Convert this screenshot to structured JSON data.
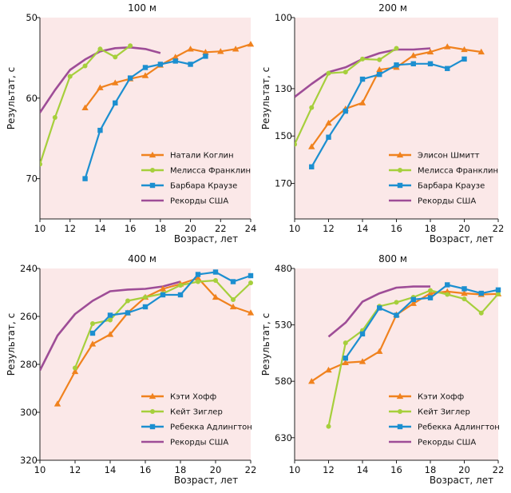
{
  "colors": {
    "orange": "#f0821e",
    "green": "#a6cf3c",
    "blue": "#1c8fd0",
    "purple": "#9e4d97",
    "plot_bg": "#fbe8e8"
  },
  "chart_data": [
    {
      "type": "line",
      "title": "100 м",
      "xlabel": "Возраст, лет",
      "ylabel": "Результат, с",
      "xlim": [
        10,
        24
      ],
      "ylim": [
        50,
        75
      ],
      "y_inverted": true,
      "xticks": [
        10,
        12,
        14,
        16,
        18,
        20,
        22,
        24
      ],
      "yticks": [
        50,
        60,
        70
      ],
      "legend_position": "bottom-right",
      "series": [
        {
          "name": "Натали Коглин",
          "color": "orange",
          "marker": "triangle",
          "x": [
            13,
            14,
            15,
            16,
            17,
            18,
            19,
            20,
            21,
            22,
            23,
            24
          ],
          "y": [
            61.2,
            58.7,
            58.1,
            57.6,
            57.2,
            55.9,
            54.9,
            53.9,
            54.3,
            54.2,
            53.9,
            53.3
          ]
        },
        {
          "name": "Мелисса Франклин",
          "color": "green",
          "marker": "circle",
          "x": [
            10,
            11,
            12,
            13,
            14,
            15,
            16
          ],
          "y": [
            68.2,
            62.4,
            57.3,
            56.0,
            53.9,
            54.9,
            53.5
          ]
        },
        {
          "name": "Барбара Краузе",
          "color": "blue",
          "marker": "square",
          "x": [
            13,
            14,
            15,
            16,
            17,
            18,
            19,
            20,
            21
          ],
          "y": [
            70.0,
            64.0,
            60.6,
            57.5,
            56.2,
            55.8,
            55.4,
            55.8,
            54.8
          ]
        },
        {
          "name": "Рекорды США",
          "color": "purple",
          "marker": "none",
          "x": [
            10,
            11,
            12,
            13,
            14,
            15,
            16,
            17,
            18
          ],
          "y": [
            61.8,
            59.0,
            56.5,
            55.2,
            54.2,
            53.8,
            53.7,
            53.9,
            54.4
          ]
        }
      ]
    },
    {
      "type": "line",
      "title": "200 м",
      "xlabel": "Возраст, лет",
      "ylabel": "Результат, с",
      "xlim": [
        10,
        22
      ],
      "ylim": [
        100,
        185
      ],
      "y_inverted": true,
      "xticks": [
        10,
        12,
        14,
        16,
        18,
        20,
        22
      ],
      "yticks": [
        100,
        130,
        150,
        170
      ],
      "legend_position": "bottom-right",
      "series": [
        {
          "name": "Элисон Шмитт",
          "color": "orange",
          "marker": "triangle",
          "x": [
            11,
            12,
            13,
            14,
            15,
            16,
            17,
            18,
            19,
            20,
            21
          ],
          "y": [
            154.5,
            144.5,
            138.5,
            136.0,
            122.0,
            121.0,
            116.0,
            114.5,
            112.3,
            113.5,
            114.5
          ]
        },
        {
          "name": "Мелисса Франклин",
          "color": "green",
          "marker": "circle",
          "x": [
            10,
            11,
            12,
            13,
            14,
            15,
            16
          ],
          "y": [
            153.5,
            138.0,
            123.5,
            123.0,
            117.5,
            117.8,
            113.0
          ]
        },
        {
          "name": "Барбара Краузе",
          "color": "blue",
          "marker": "square",
          "x": [
            11,
            12,
            13,
            14,
            15,
            16,
            17,
            18,
            19,
            20
          ],
          "y": [
            163.0,
            150.5,
            139.5,
            126.0,
            124.0,
            120.0,
            119.5,
            119.5,
            121.5,
            117.5
          ]
        },
        {
          "name": "Рекорды США",
          "color": "purple",
          "marker": "none",
          "x": [
            10,
            11,
            12,
            13,
            14,
            15,
            16,
            17,
            18
          ],
          "y": [
            133.5,
            128.0,
            123.0,
            121.0,
            117.5,
            115.0,
            113.5,
            113.5,
            113.0
          ]
        }
      ]
    },
    {
      "type": "line",
      "title": "400 м",
      "xlabel": "Возраст, лет",
      "ylabel": "Результат, с",
      "xlim": [
        10,
        22
      ],
      "ylim": [
        240,
        320
      ],
      "y_inverted": true,
      "xticks": [
        10,
        12,
        14,
        16,
        18,
        20,
        22
      ],
      "yticks": [
        240,
        260,
        280,
        300,
        320
      ],
      "legend_position": "bottom-right",
      "series": [
        {
          "name": "Кэти Хофф",
          "color": "orange",
          "marker": "triangle",
          "x": [
            11,
            12,
            13,
            14,
            15,
            16,
            17,
            18,
            19,
            20,
            21,
            22
          ],
          "y": [
            296.5,
            283.0,
            271.5,
            267.5,
            258.5,
            252.0,
            248.5,
            246.5,
            244.0,
            252.0,
            256.0,
            258.5
          ]
        },
        {
          "name": "Кейт Зиглер",
          "color": "green",
          "marker": "circle",
          "x": [
            12,
            13,
            14,
            15,
            16,
            17,
            18,
            19,
            20,
            21,
            22
          ],
          "y": [
            281.5,
            263.0,
            261.5,
            253.5,
            252.0,
            250.5,
            247.0,
            245.5,
            245.0,
            253.0,
            246.0
          ]
        },
        {
          "name": "Ребекка Адлингтон",
          "color": "blue",
          "marker": "square",
          "x": [
            13,
            14,
            15,
            16,
            17,
            18,
            19,
            20,
            21,
            22
          ],
          "y": [
            267.0,
            259.5,
            258.5,
            256.0,
            251.0,
            251.0,
            242.5,
            241.5,
            245.5,
            243.0
          ]
        },
        {
          "name": "Рекорды США",
          "color": "purple",
          "marker": "none",
          "x": [
            10,
            11,
            12,
            13,
            14,
            15,
            16,
            17,
            18
          ],
          "y": [
            282.5,
            268.0,
            259.0,
            253.5,
            249.5,
            248.8,
            248.5,
            247.5,
            245.5
          ]
        }
      ]
    },
    {
      "type": "line",
      "title": "800 м",
      "xlabel": "Возраст, лет",
      "ylabel": "Результат, с",
      "xlim": [
        10,
        22
      ],
      "ylim": [
        480,
        650
      ],
      "y_inverted": true,
      "xticks": [
        10,
        12,
        14,
        16,
        18,
        20,
        22
      ],
      "yticks": [
        480,
        530,
        580,
        630
      ],
      "legend_position": "bottom-right",
      "series": [
        {
          "name": "Кэти Хофф",
          "color": "orange",
          "marker": "triangle",
          "x": [
            11,
            12,
            13,
            14,
            15,
            16,
            17,
            18,
            19,
            20,
            21,
            22
          ],
          "y": [
            580.0,
            570.0,
            563.5,
            562.5,
            553.5,
            521.0,
            511.0,
            502.0,
            500.5,
            502.0,
            503.0,
            502.5
          ]
        },
        {
          "name": "Кейт Зиглер",
          "color": "green",
          "marker": "circle",
          "x": [
            12,
            13,
            14,
            15,
            16,
            17,
            18,
            19,
            20,
            21,
            22
          ],
          "y": [
            620.0,
            546.0,
            535.0,
            513.5,
            510.0,
            505.5,
            499.5,
            503.0,
            507.0,
            519.5,
            502.5
          ]
        },
        {
          "name": "Ребекка Адлингтон",
          "color": "blue",
          "marker": "square",
          "x": [
            13,
            14,
            15,
            16,
            17,
            18,
            19,
            20,
            21,
            22
          ],
          "y": [
            559.5,
            538.0,
            515.0,
            521.5,
            507.5,
            506.0,
            494.5,
            498.0,
            502.0,
            499.0
          ]
        },
        {
          "name": "Рекорды США",
          "color": "purple",
          "marker": "none",
          "x": [
            12,
            13,
            14,
            15,
            16,
            17,
            18
          ],
          "y": [
            540.5,
            528.0,
            509.5,
            502.0,
            497.0,
            496.0,
            496.0
          ]
        }
      ]
    }
  ]
}
